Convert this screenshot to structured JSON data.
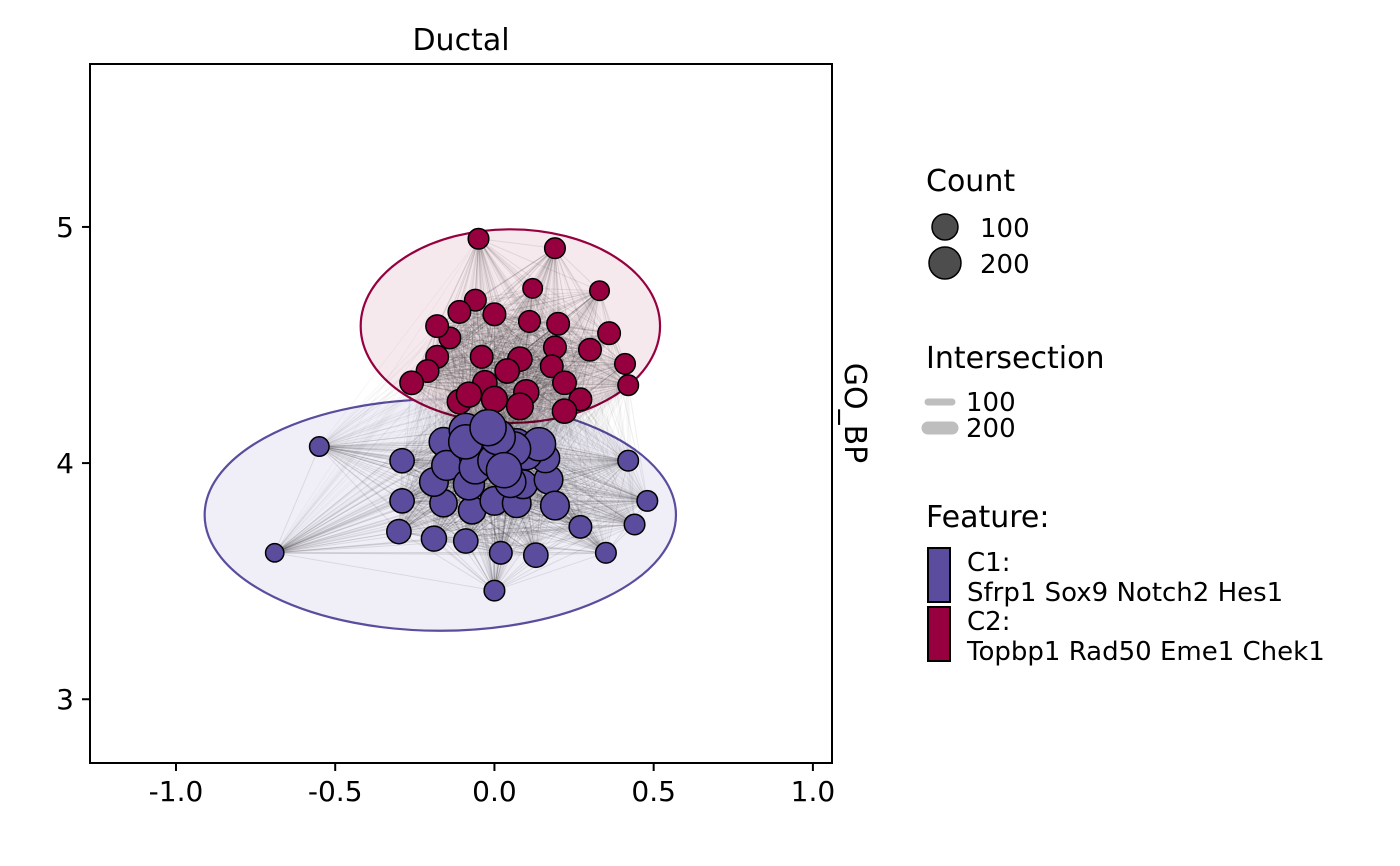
{
  "chart_data": {
    "type": "scatter",
    "subtype": "network",
    "title": "Ductal",
    "strip_label": "GO_BP",
    "xlabel": "",
    "ylabel": "",
    "xlim": [
      -1.27,
      1.06
    ],
    "ylim": [
      2.73,
      5.69
    ],
    "x_ticks": [
      -1.0,
      -0.5,
      0.0,
      0.5,
      1.0
    ],
    "x_tick_labels": [
      "-1.0",
      "-0.5",
      "0.0",
      "0.5",
      "1.0"
    ],
    "y_ticks": [
      3,
      4,
      5
    ],
    "y_tick_labels": [
      "3",
      "4",
      "5"
    ],
    "grid": false,
    "legend_position": "right",
    "legends": {
      "count": {
        "title": "Count",
        "items": [
          {
            "label": "100",
            "value": 100
          },
          {
            "label": "200",
            "value": 200
          }
        ]
      },
      "intersection": {
        "title": "Intersection",
        "items": [
          {
            "label": "100",
            "value": 100
          },
          {
            "label": "200",
            "value": 200
          }
        ]
      },
      "feature": {
        "title": "Feature:",
        "items": [
          {
            "id": "C1",
            "label": "C1:",
            "genes": "Sfrp1 Sox9 Notch2 Hes1",
            "color": "#5B4C9E"
          },
          {
            "id": "C2",
            "label": "C2:",
            "genes": "Topbp1 Rad50 Eme1 Chek1",
            "color": "#96003F"
          }
        ]
      }
    },
    "node_fill_colors": {
      "point": "#4D4D4D",
      "edge": "#BEBEBE"
    },
    "clusters": [
      {
        "id": "C1",
        "color": "#5B4C9E",
        "fill": "#EDEBF5",
        "ellipse": {
          "cx": -0.17,
          "cy": 3.78,
          "rx": 0.74,
          "ry": 0.49
        }
      },
      {
        "id": "C2",
        "color": "#96003F",
        "fill": "#F4E5EA",
        "ellipse": {
          "cx": 0.05,
          "cy": 4.58,
          "rx": 0.47,
          "ry": 0.41
        }
      }
    ],
    "nodes": [
      {
        "cluster": "C1",
        "x": -0.69,
        "y": 3.62,
        "count": 20
      },
      {
        "cluster": "C1",
        "x": -0.55,
        "y": 4.07,
        "count": 25
      },
      {
        "cluster": "C1",
        "x": 0.42,
        "y": 4.01,
        "count": 30
      },
      {
        "cluster": "C1",
        "x": 0.48,
        "y": 3.84,
        "count": 30
      },
      {
        "cluster": "C1",
        "x": 0.44,
        "y": 3.74,
        "count": 30
      },
      {
        "cluster": "C1",
        "x": 0.35,
        "y": 3.62,
        "count": 30
      },
      {
        "cluster": "C1",
        "x": 0.27,
        "y": 3.73,
        "count": 40
      },
      {
        "cluster": "C1",
        "x": 0.13,
        "y": 3.61,
        "count": 50
      },
      {
        "cluster": "C1",
        "x": 0.02,
        "y": 3.62,
        "count": 40
      },
      {
        "cluster": "C1",
        "x": -0.09,
        "y": 3.67,
        "count": 50
      },
      {
        "cluster": "C1",
        "x": -0.19,
        "y": 3.68,
        "count": 55
      },
      {
        "cluster": "C1",
        "x": -0.3,
        "y": 3.71,
        "count": 50
      },
      {
        "cluster": "C1",
        "x": 0.0,
        "y": 3.46,
        "count": 30
      },
      {
        "cluster": "C1",
        "x": -0.29,
        "y": 3.84,
        "count": 50
      },
      {
        "cluster": "C1",
        "x": -0.29,
        "y": 4.01,
        "count": 50
      },
      {
        "cluster": "C1",
        "x": -0.16,
        "y": 3.83,
        "count": 70
      },
      {
        "cluster": "C1",
        "x": -0.07,
        "y": 3.8,
        "count": 70
      },
      {
        "cluster": "C1",
        "x": -0.19,
        "y": 3.92,
        "count": 80
      },
      {
        "cluster": "C1",
        "x": -0.15,
        "y": 3.99,
        "count": 90
      },
      {
        "cluster": "C1",
        "x": -0.08,
        "y": 3.91,
        "count": 100
      },
      {
        "cluster": "C1",
        "x": -0.06,
        "y": 4.03,
        "count": 110
      },
      {
        "cluster": "C1",
        "x": 0.0,
        "y": 3.84,
        "count": 80
      },
      {
        "cluster": "C1",
        "x": 0.05,
        "y": 3.92,
        "count": 100
      },
      {
        "cluster": "C1",
        "x": 0.07,
        "y": 3.83,
        "count": 80
      },
      {
        "cluster": "C1",
        "x": 0.09,
        "y": 3.91,
        "count": 80
      },
      {
        "cluster": "C1",
        "x": 0.17,
        "y": 3.93,
        "count": 80
      },
      {
        "cluster": "C1",
        "x": 0.19,
        "y": 3.82,
        "count": 80
      },
      {
        "cluster": "C1",
        "x": -0.09,
        "y": 4.09,
        "count": 130
      },
      {
        "cluster": "C1",
        "x": 0.01,
        "y": 4.11,
        "count": 140
      },
      {
        "cluster": "C1",
        "x": 0.06,
        "y": 4.06,
        "count": 130
      },
      {
        "cluster": "C1",
        "x": 0.1,
        "y": 4.04,
        "count": 110
      },
      {
        "cluster": "C1",
        "x": 0.0,
        "y": 4.01,
        "count": 120
      },
      {
        "cluster": "C1",
        "x": 0.03,
        "y": 3.97,
        "count": 140
      },
      {
        "cluster": "C1",
        "x": -0.06,
        "y": 3.98,
        "count": 110
      },
      {
        "cluster": "C1",
        "x": -0.09,
        "y": 4.14,
        "count": 120
      },
      {
        "cluster": "C1",
        "x": -0.02,
        "y": 4.15,
        "count": 150
      },
      {
        "cluster": "C1",
        "x": 0.07,
        "y": 4.08,
        "count": 100
      },
      {
        "cluster": "C1",
        "x": 0.14,
        "y": 4.08,
        "count": 120
      },
      {
        "cluster": "C1",
        "x": -0.16,
        "y": 4.09,
        "count": 80
      },
      {
        "cluster": "C1",
        "x": 0.16,
        "y": 4.02,
        "count": 80
      },
      {
        "cluster": "C2",
        "x": -0.05,
        "y": 4.95,
        "count": 30
      },
      {
        "cluster": "C2",
        "x": 0.19,
        "y": 4.91,
        "count": 30
      },
      {
        "cluster": "C2",
        "x": 0.12,
        "y": 4.74,
        "count": 25
      },
      {
        "cluster": "C2",
        "x": 0.33,
        "y": 4.73,
        "count": 25
      },
      {
        "cluster": "C2",
        "x": -0.06,
        "y": 4.69,
        "count": 35
      },
      {
        "cluster": "C2",
        "x": -0.11,
        "y": 4.64,
        "count": 40
      },
      {
        "cluster": "C2",
        "x": 0.0,
        "y": 4.63,
        "count": 40
      },
      {
        "cluster": "C2",
        "x": 0.11,
        "y": 4.6,
        "count": 35
      },
      {
        "cluster": "C2",
        "x": 0.2,
        "y": 4.59,
        "count": 40
      },
      {
        "cluster": "C2",
        "x": -0.18,
        "y": 4.58,
        "count": 40
      },
      {
        "cluster": "C2",
        "x": -0.14,
        "y": 4.53,
        "count": 35
      },
      {
        "cluster": "C2",
        "x": 0.36,
        "y": 4.55,
        "count": 40
      },
      {
        "cluster": "C2",
        "x": 0.19,
        "y": 4.49,
        "count": 40
      },
      {
        "cluster": "C2",
        "x": 0.3,
        "y": 4.48,
        "count": 40
      },
      {
        "cluster": "C2",
        "x": -0.18,
        "y": 4.45,
        "count": 40
      },
      {
        "cluster": "C2",
        "x": -0.04,
        "y": 4.45,
        "count": 40
      },
      {
        "cluster": "C2",
        "x": 0.08,
        "y": 4.44,
        "count": 50
      },
      {
        "cluster": "C2",
        "x": 0.41,
        "y": 4.42,
        "count": 30
      },
      {
        "cluster": "C2",
        "x": -0.21,
        "y": 4.39,
        "count": 40
      },
      {
        "cluster": "C2",
        "x": 0.04,
        "y": 4.39,
        "count": 50
      },
      {
        "cluster": "C2",
        "x": 0.18,
        "y": 4.41,
        "count": 40
      },
      {
        "cluster": "C2",
        "x": -0.26,
        "y": 4.34,
        "count": 45
      },
      {
        "cluster": "C2",
        "x": -0.03,
        "y": 4.34,
        "count": 50
      },
      {
        "cluster": "C2",
        "x": 0.22,
        "y": 4.34,
        "count": 45
      },
      {
        "cluster": "C2",
        "x": 0.42,
        "y": 4.33,
        "count": 30
      },
      {
        "cluster": "C2",
        "x": -0.08,
        "y": 4.29,
        "count": 55
      },
      {
        "cluster": "C2",
        "x": 0.1,
        "y": 4.3,
        "count": 55
      },
      {
        "cluster": "C2",
        "x": 0.27,
        "y": 4.27,
        "count": 40
      },
      {
        "cluster": "C2",
        "x": -0.11,
        "y": 4.26,
        "count": 50
      },
      {
        "cluster": "C2",
        "x": 0.0,
        "y": 4.27,
        "count": 60
      },
      {
        "cluster": "C2",
        "x": 0.08,
        "y": 4.24,
        "count": 65
      },
      {
        "cluster": "C2",
        "x": 0.22,
        "y": 4.22,
        "count": 50
      }
    ]
  }
}
